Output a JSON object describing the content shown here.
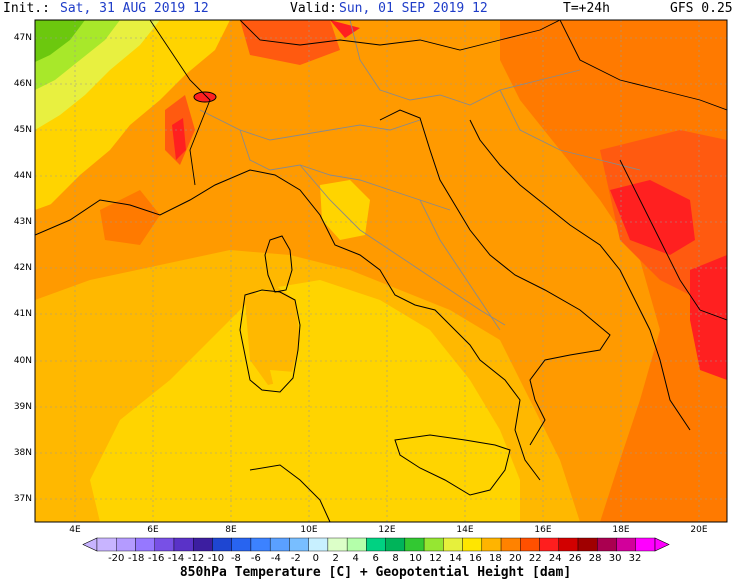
{
  "header": {
    "init_label": "Init.:",
    "init_value": "Sat, 31 AUG 2019  12",
    "valid_label": "Valid:",
    "valid_value": "Sun, 01 SEP 2019  12",
    "forecast_step": "T=+24h",
    "model": "GFS 0.25"
  },
  "map": {
    "lat_ticks": [
      "47N",
      "46N",
      "45N",
      "44N",
      "43N",
      "42N",
      "41N",
      "40N",
      "39N",
      "38N",
      "37N"
    ],
    "lon_ticks": [
      "4E",
      "6E",
      "8E",
      "10E",
      "12E",
      "14E",
      "16E",
      "18E",
      "20E"
    ],
    "field": "850hPa Temperature",
    "colors": {
      "warm_yellow": "#ffd400",
      "yellow_orange": "#ffb800",
      "orange": "#ff9a00",
      "dark_orange": "#ff7a00",
      "red_orange": "#ff5a10",
      "red": "#ff2020",
      "light_green": "#a8e82a",
      "green": "#6cc80e",
      "yellow_green": "#e8f040"
    }
  },
  "scale": {
    "ticks": [
      "-20",
      "-18",
      "-16",
      "-14",
      "-12",
      "-10",
      "-8",
      "-6",
      "-4",
      "-2",
      "0",
      "2",
      "4",
      "6",
      "8",
      "10",
      "12",
      "14",
      "16",
      "18",
      "20",
      "22",
      "24",
      "26",
      "28",
      "30",
      "32"
    ],
    "colors": [
      "#c8b4ff",
      "#b49bff",
      "#9678ff",
      "#7850e6",
      "#5a32c8",
      "#3c1ea0",
      "#1e46d2",
      "#2864f0",
      "#3c82ff",
      "#5aa0ff",
      "#78beff",
      "#c8f0ff",
      "#dcffc8",
      "#b4ffaa",
      "#00d282",
      "#00b45a",
      "#32c832",
      "#96e632",
      "#e6f03c",
      "#ffe600",
      "#ffb400",
      "#ff8200",
      "#ff5000",
      "#ff1e1e",
      "#d20000",
      "#a00000",
      "#aa0050",
      "#d2009b",
      "#ff00ff"
    ],
    "caption": "850hPa Temperature [C] + Geopotential Height [dam]"
  }
}
